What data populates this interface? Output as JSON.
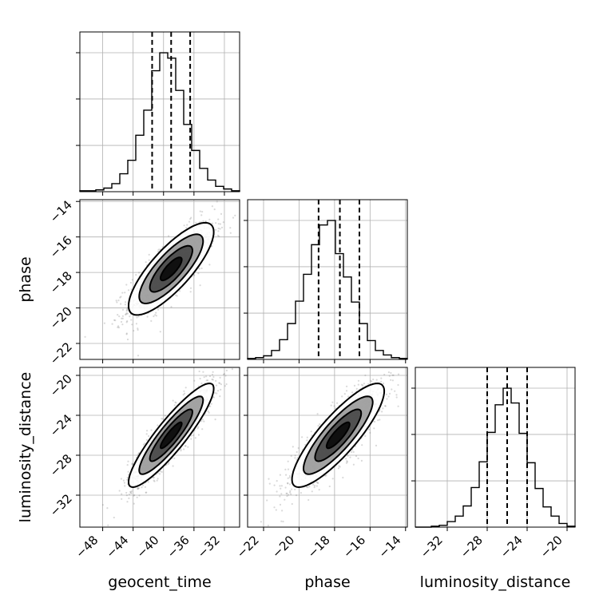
{
  "chart_data": {
    "type": "corner",
    "parameters": [
      {
        "name": "geocent_time",
        "label": "geocent_time",
        "range": [
          -51,
          -30
        ],
        "ticks": [
          -48,
          -44,
          -40,
          -36,
          -32
        ],
        "tick_labels": [
          "−48",
          "−44",
          "−40",
          "−36",
          "−32"
        ],
        "quantiles": [
          -41.5,
          -39.0,
          -36.5
        ],
        "hist_edges": [
          -51,
          -30
        ],
        "hist_counts": [
          1,
          1,
          2,
          4,
          9,
          20,
          35,
          63,
          91,
          135,
          155,
          149,
          113,
          75,
          46,
          26,
          13,
          6,
          3,
          1
        ]
      },
      {
        "name": "phase",
        "label": "phase",
        "range": [
          -22.9,
          -13.9
        ],
        "ticks": [
          -22,
          -20,
          -18,
          -16,
          -14
        ],
        "tick_labels": [
          "−22",
          "−20",
          "−18",
          "−16",
          "−14"
        ],
        "quantiles": [
          -18.9,
          -17.7,
          -16.6
        ],
        "hist_edges": [
          -22.9,
          -13.9
        ],
        "hist_counts": [
          1,
          2,
          4,
          10,
          22,
          40,
          65,
          95,
          128,
          150,
          155,
          118,
          92,
          64,
          40,
          21,
          10,
          5,
          2,
          1
        ]
      },
      {
        "name": "luminosity_distance",
        "label": "luminosity_distance",
        "range": [
          -35.2,
          -19.2
        ],
        "ticks": [
          -32,
          -28,
          -24,
          -20
        ],
        "tick_labels": [
          "−32",
          "−28",
          "−24",
          "−20"
        ],
        "quantiles": [
          -28.0,
          -26.0,
          -24.0
        ],
        "hist_edges": [
          -35.2,
          -19.2
        ],
        "hist_counts": [
          0,
          0,
          1,
          2,
          6,
          12,
          23,
          43,
          71,
          103,
          133,
          151,
          135,
          102,
          70,
          42,
          22,
          12,
          4,
          1
        ]
      }
    ],
    "pairs": [
      {
        "x": "geocent_time",
        "y": "phase",
        "mean": [
          -39.0,
          -17.8
        ],
        "std": [
          2.8,
          1.3
        ],
        "correlation": 0.8,
        "n_points": 1200
      },
      {
        "x": "geocent_time",
        "y": "luminosity_distance",
        "mean": [
          -39.0,
          -26.0
        ],
        "std": [
          2.8,
          2.6
        ],
        "correlation": 0.9,
        "n_points": 1200
      },
      {
        "x": "phase",
        "y": "luminosity_distance",
        "mean": [
          -17.8,
          -26.0
        ],
        "std": [
          1.3,
          2.6
        ],
        "correlation": 0.85,
        "n_points": 1200
      }
    ],
    "contour_levels": [
      0.5,
      1.0,
      1.5,
      2.0
    ],
    "hist_y_ticks": [
      0.333,
      0.667,
      1.0
    ],
    "grid": true,
    "colors": {
      "points": "#808080",
      "lines": "#000000",
      "grid": "#b0b0b0"
    }
  }
}
